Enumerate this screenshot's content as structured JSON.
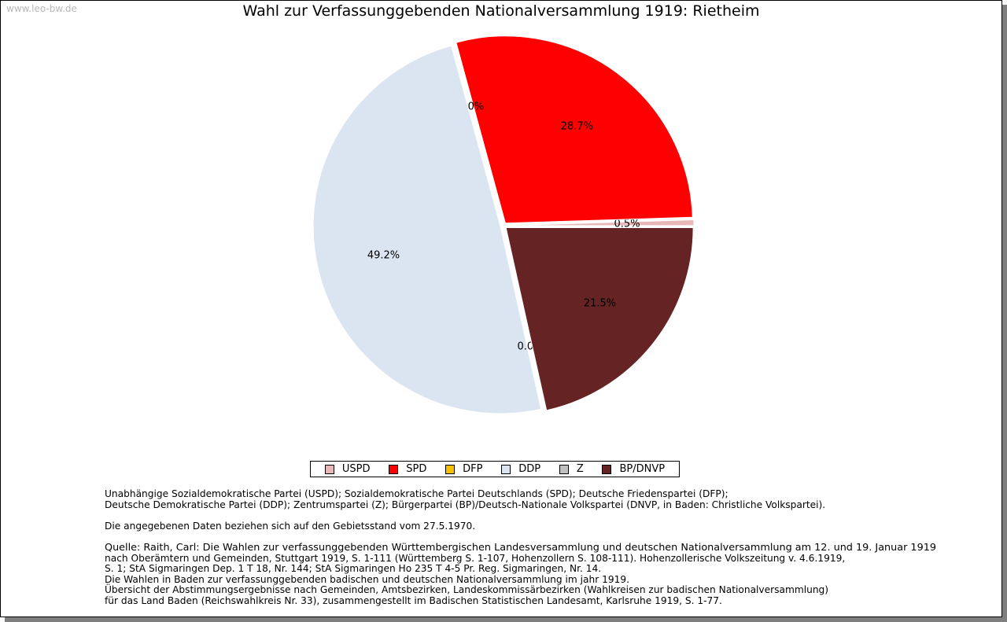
{
  "watermark": "www.leo-bw.de",
  "chart_data": {
    "type": "pie",
    "title": "Wahl zur Verfassunggebenden Nationalversammlung 1919: Rietheim",
    "categories": [
      "USPD",
      "SPD",
      "DFP",
      "DDP",
      "Z",
      "BP/DNVP"
    ],
    "values": [
      0.5,
      28.7,
      0.0,
      49.2,
      0.0,
      21.5
    ],
    "labels": [
      "0.5%",
      "28.7%",
      "0.0%",
      "49.2%",
      "0.0%",
      "21.5%"
    ],
    "colors": [
      "#e8b8b8",
      "#ff0000",
      "#f5c000",
      "#dbe4f1",
      "#c0c0c0",
      "#652323"
    ],
    "legend_position": "bottom"
  },
  "notes": {
    "abbr_line1": "Unabhängige Sozialdemokratische Partei (USPD); Sozialdemokratische Partei Deutschlands (SPD); Deutsche Friedenspartei (DFP);",
    "abbr_line2": "Deutsche Demokratische Partei (DDP); Zentrumspartei (Z); Bürgerpartei (BP)/Deutsch-Nationale Volkspartei (DNVP, in Baden: Christliche Volkspartei).",
    "gebietsstand": "Die angegebenen Daten beziehen sich auf den Gebietsstand vom 27.5.1970.",
    "source_line1": "Quelle: Raith, Carl: Die Wahlen zur verfassunggebenden Württembergischen Landesversammlung und deutschen Nationalversammlung am 12. und 19. Januar 1919",
    "source_line2": "nach Oberämtern und Gemeinden, Stuttgart 1919, S. 1-111 (Württemberg S. 1-107, Hohenzollern S. 108-111). Hohenzollerische Volkszeitung v. 4.6.1919,",
    "source_line3": "S. 1; StA Sigmaringen Dep. 1 T 18, Nr. 144; StA Sigmaringen Ho 235 T 4-5 Pr. Reg. Sigmaringen, Nr. 14.",
    "source_line4": "Die Wahlen in Baden zur verfassunggebenden badischen und deutschen Nationalversammlung im jahr 1919.",
    "source_line5": "Übersicht der Abstimmungsergebnisse nach Gemeinden, Amtsbezirken, Landeskommissärbezirken (Wahlkreisen zur badischen Nationalversammlung)",
    "source_line6": "für das Land Baden (Reichswahlkreis Nr. 33), zusammengestellt im Badischen Statistischen Landesamt, Karlsruhe 1919, S. 1-77."
  }
}
